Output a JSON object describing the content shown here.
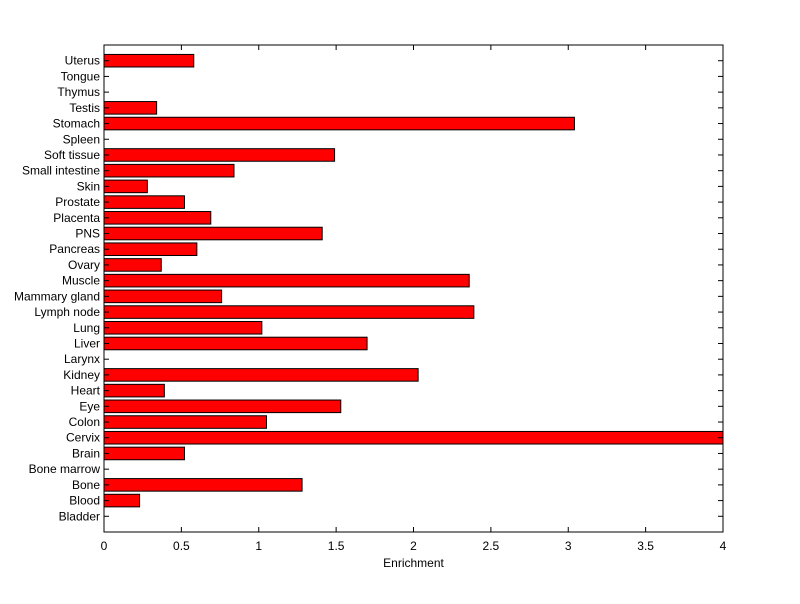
{
  "chart_data": {
    "type": "bar",
    "orientation": "horizontal",
    "title": "",
    "xlabel": "Enrichment",
    "ylabel": "",
    "xlim": [
      0,
      4
    ],
    "x_ticks": [
      0,
      0.5,
      1,
      1.5,
      2,
      2.5,
      3,
      3.5,
      4
    ],
    "x_tick_labels": [
      "0",
      "0.5",
      "1",
      "1.5",
      "2",
      "2.5",
      "3",
      "3.5",
      "4"
    ],
    "grid": false,
    "legend": "none",
    "bar_color": "#ff0000",
    "categories": [
      "Bladder",
      "Blood",
      "Bone",
      "Bone marrow",
      "Brain",
      "Cervix",
      "Colon",
      "Eye",
      "Heart",
      "Kidney",
      "Larynx",
      "Liver",
      "Lung",
      "Lymph node",
      "Mammary gland",
      "Muscle",
      "Ovary",
      "Pancreas",
      "PNS",
      "Placenta",
      "Prostate",
      "Skin",
      "Small intestine",
      "Soft tissue",
      "Spleen",
      "Stomach",
      "Testis",
      "Thymus",
      "Tongue",
      "Uterus"
    ],
    "values": [
      0,
      0.23,
      1.28,
      0,
      0.52,
      4.0,
      1.05,
      1.53,
      0.39,
      2.03,
      0,
      1.7,
      1.02,
      2.39,
      0.76,
      2.36,
      0.37,
      0.6,
      1.41,
      0.69,
      0.52,
      0.28,
      0.84,
      1.49,
      0,
      3.04,
      0.34,
      0,
      0,
      0.58
    ]
  }
}
